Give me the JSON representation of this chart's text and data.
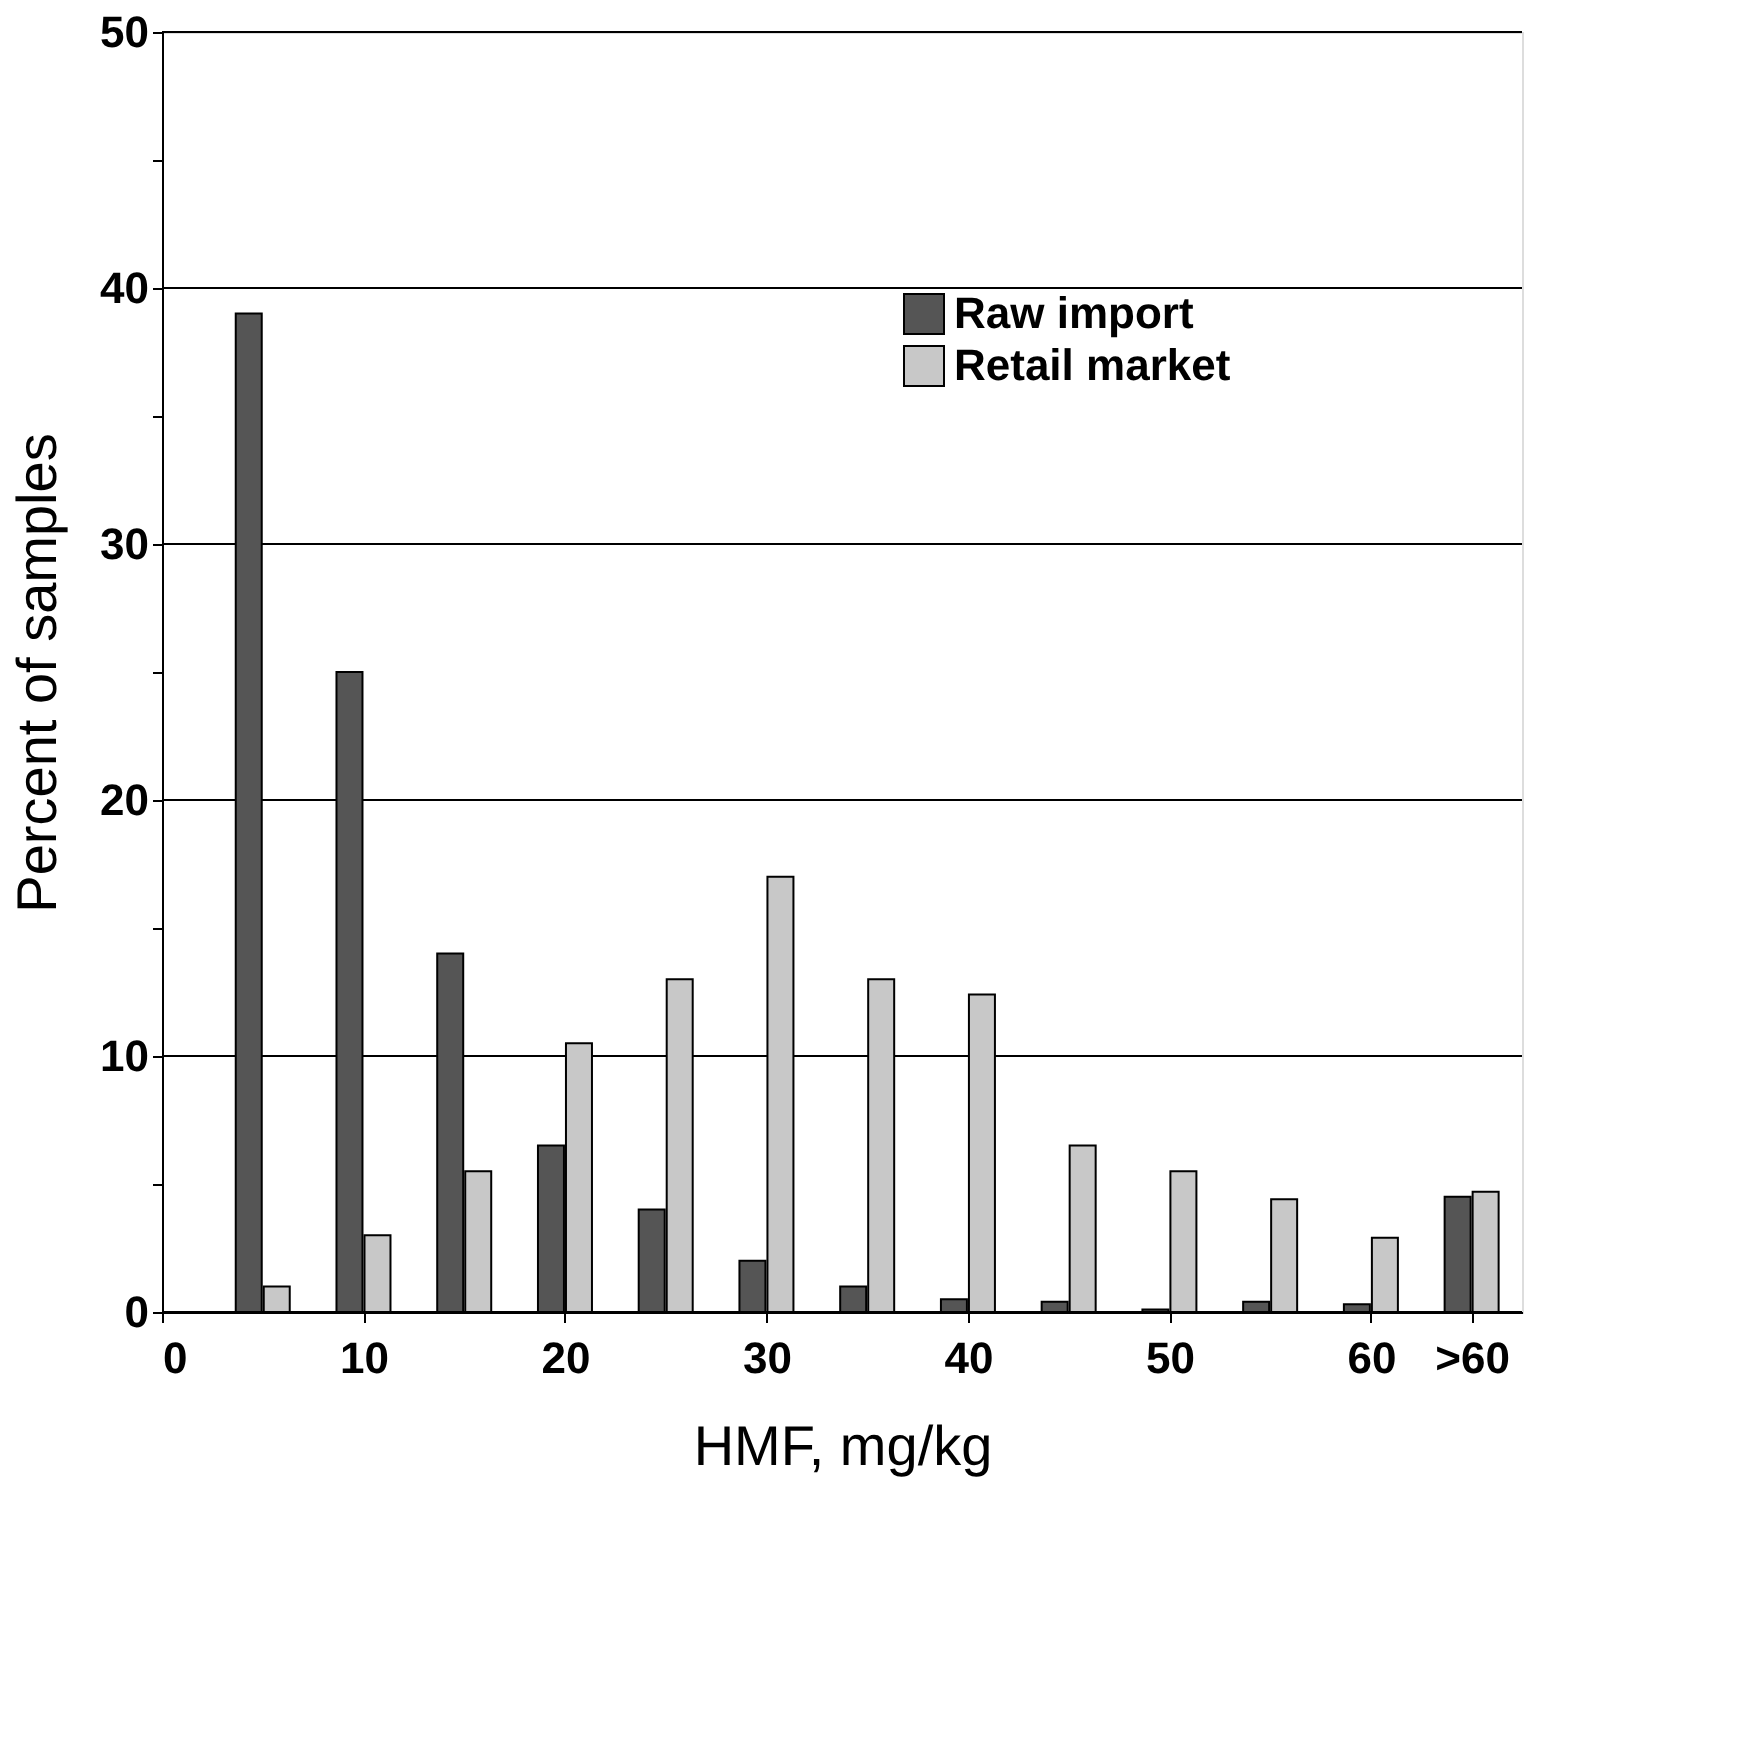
{
  "chart_data": {
    "type": "bar",
    "xlabel": "HMF, mg/kg",
    "ylabel": "Percent of samples",
    "x": [
      5,
      10,
      15,
      20,
      25,
      30,
      35,
      40,
      45,
      50,
      55,
      60,
      65
    ],
    "series": [
      {
        "name": "Raw import",
        "color": "#555555",
        "values": [
          39,
          25,
          14,
          6.5,
          4,
          2,
          1,
          0.5,
          0.4,
          0.1,
          0.4,
          0.3,
          4.5
        ]
      },
      {
        "name": "Retail market",
        "color": "#c8c8c8",
        "values": [
          1,
          3,
          5.5,
          10.5,
          13,
          17,
          13,
          12.4,
          6.5,
          5.5,
          4.4,
          2.9,
          4.7
        ]
      }
    ],
    "xlim": [
      0,
      67.5
    ],
    "xticks": [
      0,
      10,
      20,
      30,
      40,
      50,
      60,
      {
        "value": 65,
        "label": ">60"
      }
    ],
    "ylim": [
      0,
      50
    ],
    "yticks": [
      0,
      {
        "value": 5,
        "label": null
      },
      10,
      {
        "value": 15,
        "label": null
      },
      20,
      {
        "value": 25,
        "label": null
      },
      30,
      {
        "value": 35,
        "label": null
      },
      40,
      {
        "value": 45,
        "label": null
      },
      50
    ],
    "grid": "y",
    "legend": "top right"
  }
}
